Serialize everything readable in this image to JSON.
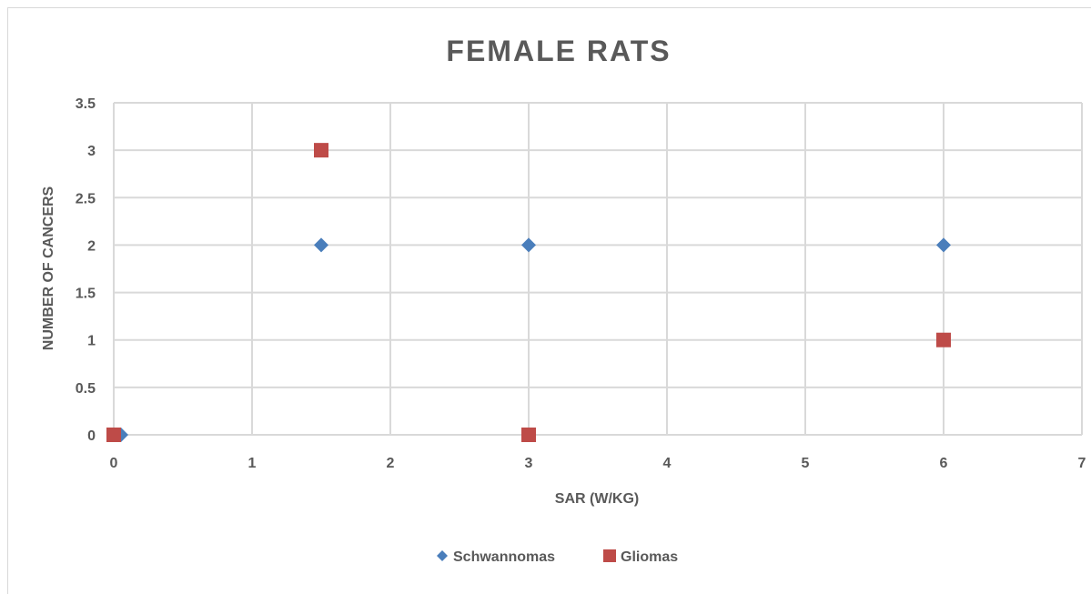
{
  "chart_data": {
    "type": "scatter",
    "title": "FEMALE RATS",
    "xlabel": "SAR (W/KG)",
    "ylabel": "NUMBER OF CANCERS",
    "xlim": [
      0,
      7
    ],
    "ylim": [
      0,
      3.5
    ],
    "x_ticks": [
      "0",
      "1",
      "2",
      "3",
      "4",
      "5",
      "6",
      "7"
    ],
    "y_ticks": [
      "0",
      "0.5",
      "1",
      "1.5",
      "2",
      "2.5",
      "3",
      "3.5"
    ],
    "grid": true,
    "legend_position": "bottom",
    "series": [
      {
        "name": "Schwannomas",
        "marker": "diamond",
        "color": "#4a7ebb",
        "points": [
          {
            "x": 0,
            "y": 0
          },
          {
            "x": 1.5,
            "y": 2
          },
          {
            "x": 3,
            "y": 2
          },
          {
            "x": 6,
            "y": 2
          }
        ]
      },
      {
        "name": "Gliomas",
        "marker": "square",
        "color": "#be4b48",
        "points": [
          {
            "x": 0,
            "y": 0
          },
          {
            "x": 1.5,
            "y": 3
          },
          {
            "x": 3,
            "y": 0
          },
          {
            "x": 6,
            "y": 1
          }
        ]
      }
    ]
  }
}
